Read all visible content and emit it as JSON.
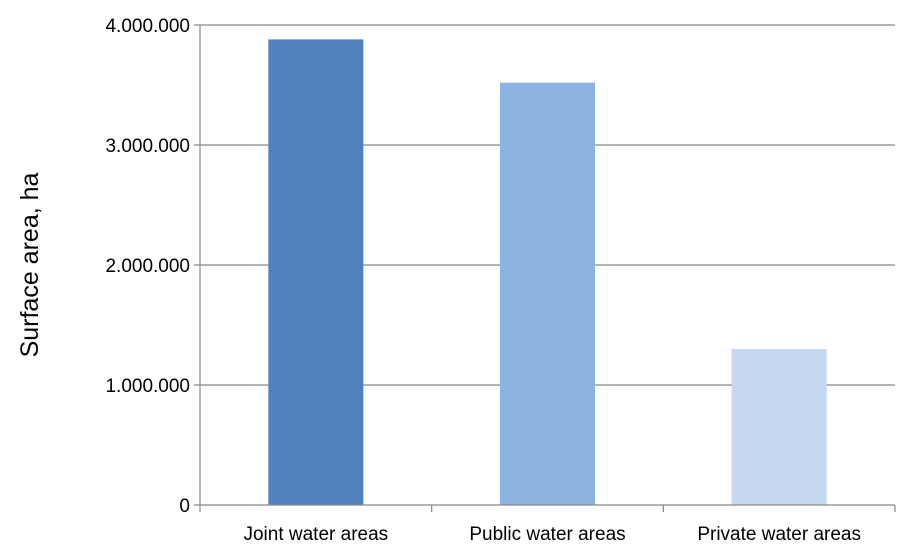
{
  "chart_data": {
    "type": "bar",
    "title": "",
    "xlabel": "",
    "ylabel": "Surface area, ha",
    "categories": [
      "Joint water areas",
      "Public water areas",
      "Private water areas"
    ],
    "values": [
      3880000,
      3520000,
      1300000
    ],
    "colors": [
      "#4f81bd",
      "#8db3e2",
      "#c6d9f1"
    ],
    "ylim": [
      0,
      4000000
    ],
    "yticks": [
      0,
      1000000,
      2000000,
      3000000,
      4000000
    ],
    "ytick_labels": [
      "0",
      "1.000.000",
      "2.000.000",
      "3.000.000",
      "4.000.000"
    ],
    "grid": true,
    "legend": "none"
  }
}
